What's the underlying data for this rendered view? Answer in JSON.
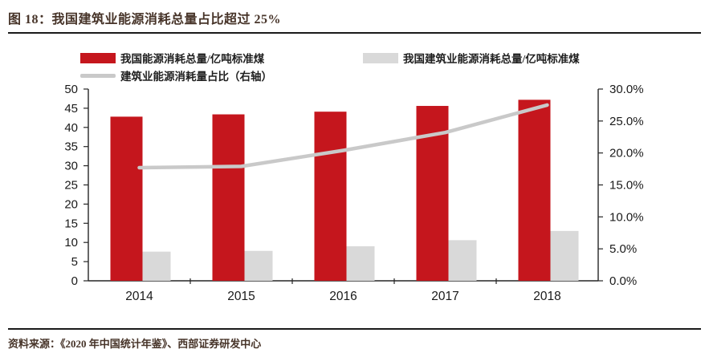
{
  "header": {
    "title": "图 18：我国建筑业能源消耗总量占比超过 25%"
  },
  "legend": {
    "items": [
      {
        "label": "我国能源消耗总量/亿吨标准煤",
        "swatch": "bar-red"
      },
      {
        "label": "我国建筑业能源消耗总量/亿吨标准煤",
        "swatch": "bar-gray"
      },
      {
        "label": "建筑业能源消耗量占比（右轴）",
        "swatch": "line-gray"
      }
    ]
  },
  "chart_data": {
    "type": "bar",
    "subtype": "grouped bars with secondary-axis line",
    "categories": [
      "2014",
      "2015",
      "2016",
      "2017",
      "2018"
    ],
    "series": [
      {
        "name": "我国能源消耗总量/亿吨标准煤",
        "type": "bar",
        "axis": "left",
        "color": "#c5161d",
        "values": [
          42.8,
          43.4,
          44.1,
          45.6,
          47.2
        ]
      },
      {
        "name": "我国建筑业能源消耗总量/亿吨标准煤",
        "type": "bar",
        "axis": "left",
        "color": "#d9d9d9",
        "values": [
          7.6,
          7.8,
          9.0,
          10.6,
          13.0
        ]
      },
      {
        "name": "建筑业能源消耗量占比（右轴）",
        "type": "line",
        "axis": "right",
        "color": "#c9c9c9",
        "values": [
          17.7,
          17.9,
          20.4,
          23.2,
          27.5
        ]
      }
    ],
    "left_axis": {
      "min": 0,
      "max": 50,
      "step": 5,
      "tick_labels": [
        "0",
        "5",
        "10",
        "15",
        "20",
        "25",
        "30",
        "35",
        "40",
        "45",
        "50"
      ]
    },
    "right_axis": {
      "min": 0,
      "max": 30,
      "step": 5,
      "tick_labels": [
        "0.0%",
        "5.0%",
        "10.0%",
        "15.0%",
        "20.0%",
        "25.0%",
        "30.0%"
      ]
    },
    "title": "",
    "xlabel": "",
    "ylabel": "",
    "grid": false,
    "legend_position": "top"
  },
  "footer": {
    "source": "资料来源：《2020 年中国统计年鉴》、西部证券研发中心"
  },
  "colors": {
    "bar_primary": "#c5161d",
    "bar_secondary": "#d9d9d9",
    "ratio_line": "#c9c9c9",
    "axis": "#262626",
    "tick_text": "#1a1a1a",
    "heading_text": "#473429",
    "rule": "#1a1a1a",
    "background": "#ffffff"
  }
}
